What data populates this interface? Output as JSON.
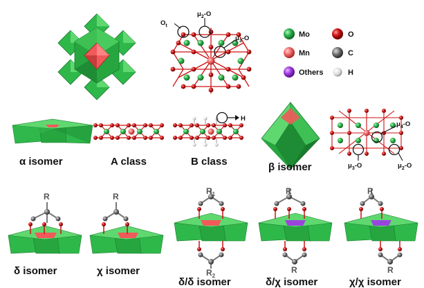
{
  "legend": {
    "items": [
      {
        "label": "Mo",
        "color": "#2bb34b"
      },
      {
        "label": "O",
        "color": "#cc1111"
      },
      {
        "label": "Mn",
        "color": "#f06464"
      },
      {
        "label": "C",
        "color": "#666666"
      },
      {
        "label": "Others",
        "color": "#9a33dd"
      },
      {
        "label": "H",
        "color": "#dddddd"
      }
    ]
  },
  "annotations": {
    "ot": "O",
    "ot_sub": "t",
    "mu2_top": "μ",
    "mu2_top_sub": "2",
    "mu2_top_suffix": "-O",
    "mu3_top": "μ",
    "mu3_top_sub": "3",
    "mu3_top_suffix": "-O",
    "h_label": "H",
    "mu4": "μ",
    "mu4_sub": "4",
    "mu4_suffix": "-O",
    "mu3_right": "μ",
    "mu3_right_sub": "3",
    "mu3_right_suffix": "-O",
    "mu2_right": "μ",
    "mu2_right_sub": "2",
    "mu2_right_suffix": "-O"
  },
  "captions": {
    "alpha": "α isomer",
    "a_class": "A class",
    "b_class": "B class",
    "beta": "β isomer",
    "delta": "δ isomer",
    "chi": "χ isomer",
    "delta_delta": "δ/δ isomer",
    "delta_chi": "δ/χ isomer",
    "chi_chi": "χ/χ isomer"
  },
  "substituent_labels": {
    "r": "R",
    "r1": "R",
    "r1_sub": "1",
    "r2": "R",
    "r2_sub": "2"
  },
  "colors": {
    "polyhedron_green": "#2fb84a",
    "polyhedron_dark": "#1e8c35",
    "polyhedron_light": "#5fd870",
    "mn_center": "#f05a5a",
    "others_center": "#9a44dd",
    "bond": "#cc1111",
    "mo_atom": "#2bb34b",
    "o_atom": "#cc1111",
    "c_atom": "#777777",
    "h_atom": "#e0e0e0"
  }
}
